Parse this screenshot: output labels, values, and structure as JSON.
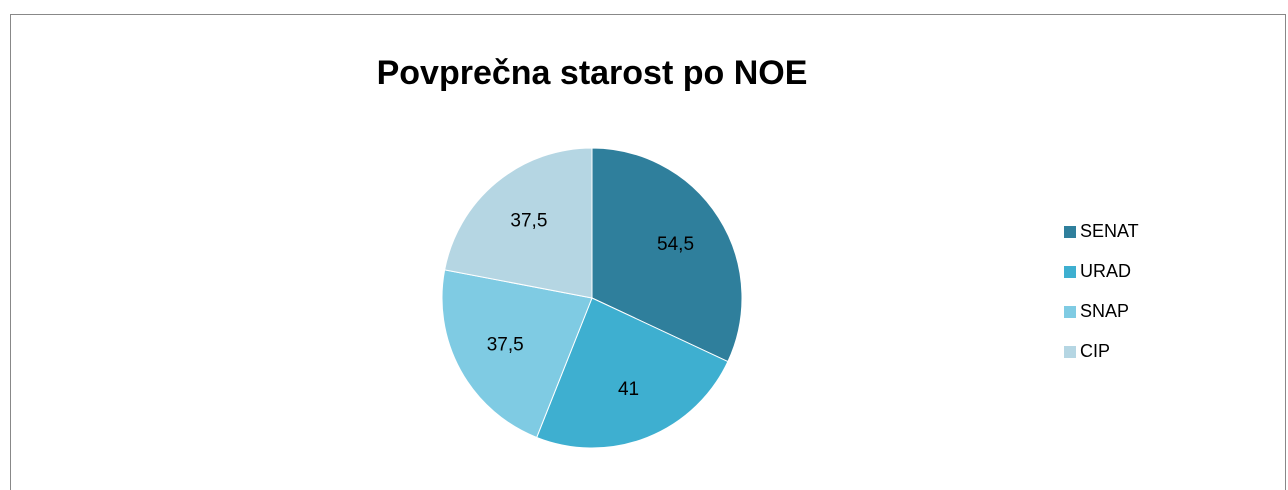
{
  "chart_data": {
    "type": "pie",
    "title": "Povprečna starost  po NOE",
    "categories": [
      "SENAT",
      "URAD",
      "SNAP",
      "CIP"
    ],
    "values": [
      54.5,
      41,
      37.5,
      37.5
    ],
    "value_labels": [
      "54,5",
      "41",
      "37,5",
      "37,5"
    ],
    "colors": [
      "#2f7f9c",
      "#3eafd0",
      "#7fcbe3",
      "#b5d6e3"
    ],
    "legend": "right"
  }
}
